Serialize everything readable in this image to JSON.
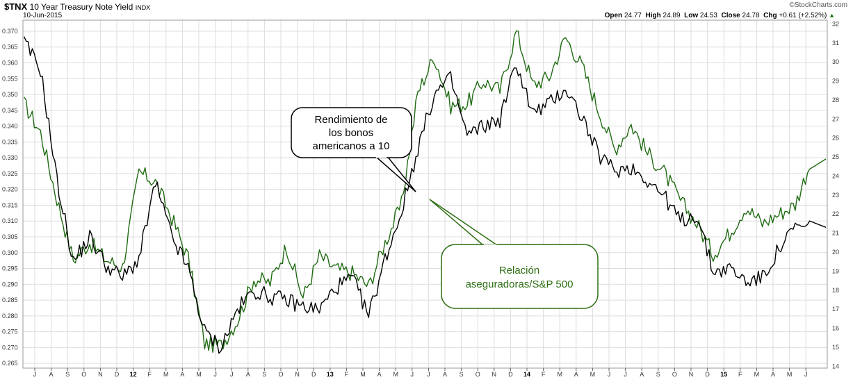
{
  "header": {
    "symbol": "$TNX",
    "name": "10 Year Treasury Note Yield",
    "exchange": "INDX",
    "date": "10-Jun-2015",
    "brand": "©StockCharts.com",
    "open_label": "Open",
    "open": "24.77",
    "high_label": "High",
    "high": "24.89",
    "low_label": "Low",
    "low": "24.53",
    "close_label": "Close",
    "close": "24.78",
    "chg_label": "Chg",
    "chg": "+0.61 (+2.52%)",
    "chg_arrow": "▲"
  },
  "annotations": {
    "black": [
      "Rendimiento de",
      "los bonos",
      "americanos a 10"
    ],
    "green": [
      "Relación",
      "aseguradoras/S&P 500"
    ]
  },
  "colors": {
    "black_series": "#000000",
    "green_series": "#1f6b12",
    "grid": "#dddddd",
    "callout_border_green": "#2c6e12",
    "callout_text_green": "#2c6e12"
  },
  "chart_data": {
    "type": "line",
    "x_axis": {
      "ticks": [
        "J",
        "A",
        "S",
        "O",
        "N",
        "D",
        "12",
        "F",
        "M",
        "A",
        "M",
        "J",
        "J",
        "A",
        "S",
        "O",
        "N",
        "D",
        "13",
        "F",
        "M",
        "A",
        "M",
        "J",
        "J",
        "A",
        "S",
        "O",
        "N",
        "D",
        "14",
        "F",
        "M",
        "A",
        "M",
        "J",
        "J",
        "A",
        "S",
        "O",
        "N",
        "D",
        "15",
        "F",
        "M",
        "A",
        "M",
        "J"
      ],
      "start": "Jul 2011",
      "end": "Jun 2015"
    },
    "y_left": {
      "ticks": [
        "0.370",
        "0.365",
        "0.360",
        "0.355",
        "0.350",
        "0.345",
        "0.340",
        "0.335",
        "0.330",
        "0.325",
        "0.320",
        "0.315",
        "0.310",
        "0.305",
        "0.300",
        "0.295",
        "0.290",
        "0.285",
        "0.280",
        "0.275",
        "0.270",
        "0.265"
      ],
      "range": [
        0.2635,
        0.3735
      ]
    },
    "y_right": {
      "ticks": [
        "32",
        "31",
        "30",
        "29",
        "28",
        "27",
        "26",
        "25",
        "24",
        "23",
        "22",
        "21",
        "20",
        "19",
        "18",
        "17",
        "16",
        "15",
        "14"
      ],
      "range": [
        13.9,
        32.2
      ]
    },
    "grid": true,
    "series": [
      {
        "axis": "right",
        "x": [
          0,
          1,
          2,
          3,
          4,
          5,
          6,
          7,
          8,
          9,
          10,
          11,
          12,
          13,
          14,
          15,
          16,
          17,
          18,
          19,
          20,
          21,
          22,
          23,
          24,
          25,
          26,
          27,
          28,
          29,
          30,
          31,
          32,
          33,
          34,
          35,
          36,
          37,
          38,
          39,
          40,
          41,
          42,
          43,
          44,
          45,
          46,
          47,
          48
        ],
        "values": [
          27.8,
          26.3,
          22.8,
          19.6,
          20.5,
          19.6,
          19.2,
          24.2,
          23.7,
          21.8,
          19.7,
          15.2,
          15.1,
          16.4,
          18.6,
          18.4,
          20.3,
          17.6,
          19.8,
          19.1,
          18.9,
          18.2,
          20.5,
          22.5,
          28.4,
          30.3,
          27.7,
          27.8,
          29.0,
          28.5,
          31.6,
          28.8,
          29.2,
          31.3,
          29.8,
          27.5,
          25.4,
          26.7,
          25.2,
          24.2,
          22.7,
          21.5,
          19.9,
          21.0,
          22.4,
          21.5,
          22.0,
          22.5,
          24.9
        ]
      },
      {
        "axis": "left",
        "x": [
          0,
          1,
          2,
          3,
          4,
          5,
          6,
          7,
          8,
          9,
          10,
          11,
          12,
          13,
          14,
          15,
          16,
          17,
          18,
          19,
          20,
          21,
          22,
          23,
          24,
          25,
          26,
          27,
          28,
          29,
          30,
          31,
          32,
          33,
          34,
          35,
          36,
          37,
          38,
          39,
          40,
          41,
          42,
          43,
          44,
          45,
          46,
          47,
          48
        ],
        "values": [
          0.3665,
          0.358,
          0.323,
          0.297,
          0.305,
          0.296,
          0.292,
          0.298,
          0.322,
          0.305,
          0.295,
          0.275,
          0.27,
          0.282,
          0.288,
          0.286,
          0.285,
          0.283,
          0.282,
          0.289,
          0.292,
          0.28,
          0.298,
          0.313,
          0.333,
          0.35,
          0.355,
          0.337,
          0.34,
          0.342,
          0.36,
          0.344,
          0.347,
          0.352,
          0.343,
          0.331,
          0.326,
          0.327,
          0.323,
          0.318,
          0.31,
          0.312,
          0.294,
          0.295,
          0.291,
          0.292,
          0.301,
          0.308,
          0.308
        ]
      }
    ]
  }
}
